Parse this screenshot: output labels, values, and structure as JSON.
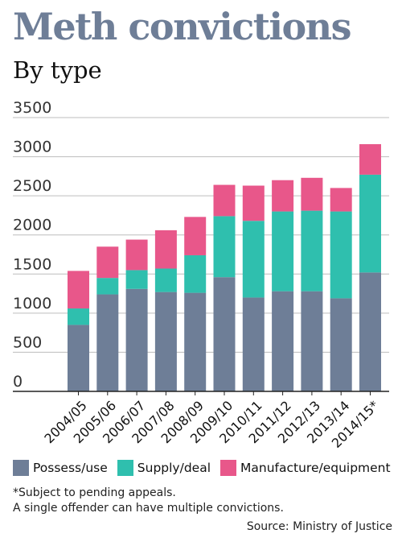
{
  "chart_data": {
    "type": "bar",
    "stacked": true,
    "title": "Meth convictions",
    "subtitle": "By type",
    "categories": [
      "2004/05",
      "2005/06",
      "2006/07",
      "2007/08",
      "2008/09",
      "2009/10",
      "2010/11",
      "2011/12",
      "2012/13",
      "2013/14",
      "2014/15*"
    ],
    "series": [
      {
        "name": "Possess/use",
        "color": "#6e7e97",
        "values": [
          850,
          1240,
          1310,
          1270,
          1260,
          1460,
          1200,
          1280,
          1280,
          1190,
          1520
        ]
      },
      {
        "name": "Supply/deal",
        "color": "#2fbfae",
        "values": [
          210,
          210,
          240,
          300,
          480,
          780,
          980,
          1020,
          1030,
          1110,
          1250
        ]
      },
      {
        "name": "Manufacture/equipment",
        "color": "#e8578a",
        "values": [
          480,
          400,
          390,
          490,
          490,
          400,
          450,
          400,
          420,
          300,
          390
        ]
      }
    ],
    "ylim": [
      0,
      3500
    ],
    "yticks": [
      0,
      500,
      1000,
      1500,
      2000,
      2500,
      3000,
      3500
    ],
    "grid": true,
    "legend_position": "bottom"
  },
  "footnotes": {
    "line1": "*Subject to pending appeals.",
    "line2": "A single offender can have multiple convictions."
  },
  "source": "Source: Ministry of Justice"
}
